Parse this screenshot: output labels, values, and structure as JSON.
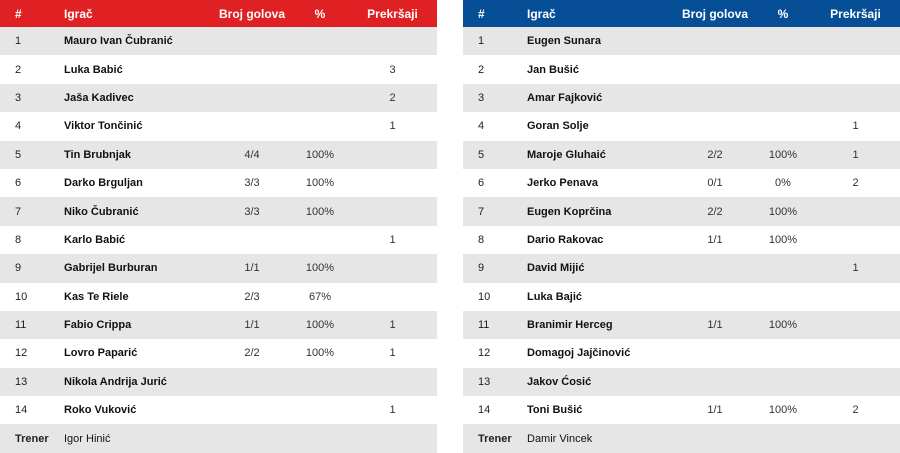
{
  "columns": {
    "num": "#",
    "player": "Igrač",
    "goals": "Broj golova",
    "pct": "%",
    "fouls": "Prekršaji"
  },
  "home": {
    "accent": "#e02124",
    "rows": [
      {
        "num": "1",
        "name": "Mauro Ivan Čubranić",
        "goals": "",
        "pct": "",
        "fouls": ""
      },
      {
        "num": "2",
        "name": "Luka Babić",
        "goals": "",
        "pct": "",
        "fouls": "3"
      },
      {
        "num": "3",
        "name": "Jaša Kadivec",
        "goals": "",
        "pct": "",
        "fouls": "2"
      },
      {
        "num": "4",
        "name": "Viktor Tončinić",
        "goals": "",
        "pct": "",
        "fouls": "1"
      },
      {
        "num": "5",
        "name": "Tin Brubnjak",
        "goals": "4/4",
        "pct": "100%",
        "fouls": ""
      },
      {
        "num": "6",
        "name": "Darko Brguljan",
        "goals": "3/3",
        "pct": "100%",
        "fouls": ""
      },
      {
        "num": "7",
        "name": "Niko Čubranić",
        "goals": "3/3",
        "pct": "100%",
        "fouls": ""
      },
      {
        "num": "8",
        "name": "Karlo Babić",
        "goals": "",
        "pct": "",
        "fouls": "1"
      },
      {
        "num": "9",
        "name": "Gabrijel Burburan",
        "goals": "1/1",
        "pct": "100%",
        "fouls": ""
      },
      {
        "num": "10",
        "name": "Kas Te Riele",
        "goals": "2/3",
        "pct": "67%",
        "fouls": ""
      },
      {
        "num": "11",
        "name": "Fabio Crippa",
        "goals": "1/1",
        "pct": "100%",
        "fouls": "1"
      },
      {
        "num": "12",
        "name": "Lovro Paparić",
        "goals": "2/2",
        "pct": "100%",
        "fouls": "1"
      },
      {
        "num": "13",
        "name": "Nikola Andrija Jurić",
        "goals": "",
        "pct": "",
        "fouls": ""
      },
      {
        "num": "14",
        "name": "Roko Vuković",
        "goals": "",
        "pct": "",
        "fouls": "1"
      }
    ],
    "coach_label": "Trener",
    "coach": "Igor Hinić"
  },
  "away": {
    "accent": "#064f97",
    "rows": [
      {
        "num": "1",
        "name": "Eugen Sunara",
        "goals": "",
        "pct": "",
        "fouls": ""
      },
      {
        "num": "2",
        "name": "Jan Bušić",
        "goals": "",
        "pct": "",
        "fouls": ""
      },
      {
        "num": "3",
        "name": "Amar Fajković",
        "goals": "",
        "pct": "",
        "fouls": ""
      },
      {
        "num": "4",
        "name": "Goran Solje",
        "goals": "",
        "pct": "",
        "fouls": "1"
      },
      {
        "num": "5",
        "name": "Maroje Gluhaić",
        "goals": "2/2",
        "pct": "100%",
        "fouls": "1"
      },
      {
        "num": "6",
        "name": "Jerko Penava",
        "goals": "0/1",
        "pct": "0%",
        "fouls": "2"
      },
      {
        "num": "7",
        "name": "Eugen Koprčina",
        "goals": "2/2",
        "pct": "100%",
        "fouls": ""
      },
      {
        "num": "8",
        "name": "Dario Rakovac",
        "goals": "1/1",
        "pct": "100%",
        "fouls": ""
      },
      {
        "num": "9",
        "name": "David Mijić",
        "goals": "",
        "pct": "",
        "fouls": "1"
      },
      {
        "num": "10",
        "name": "Luka Bajić",
        "goals": "",
        "pct": "",
        "fouls": ""
      },
      {
        "num": "11",
        "name": "Branimir Herceg",
        "goals": "1/1",
        "pct": "100%",
        "fouls": ""
      },
      {
        "num": "12",
        "name": "Domagoj Jajčinović",
        "goals": "",
        "pct": "",
        "fouls": ""
      },
      {
        "num": "13",
        "name": "Jakov Ćosić",
        "goals": "",
        "pct": "",
        "fouls": ""
      },
      {
        "num": "14",
        "name": "Toni Bušić",
        "goals": "1/1",
        "pct": "100%",
        "fouls": "2"
      }
    ],
    "coach_label": "Trener",
    "coach": "Damir Vincek"
  }
}
